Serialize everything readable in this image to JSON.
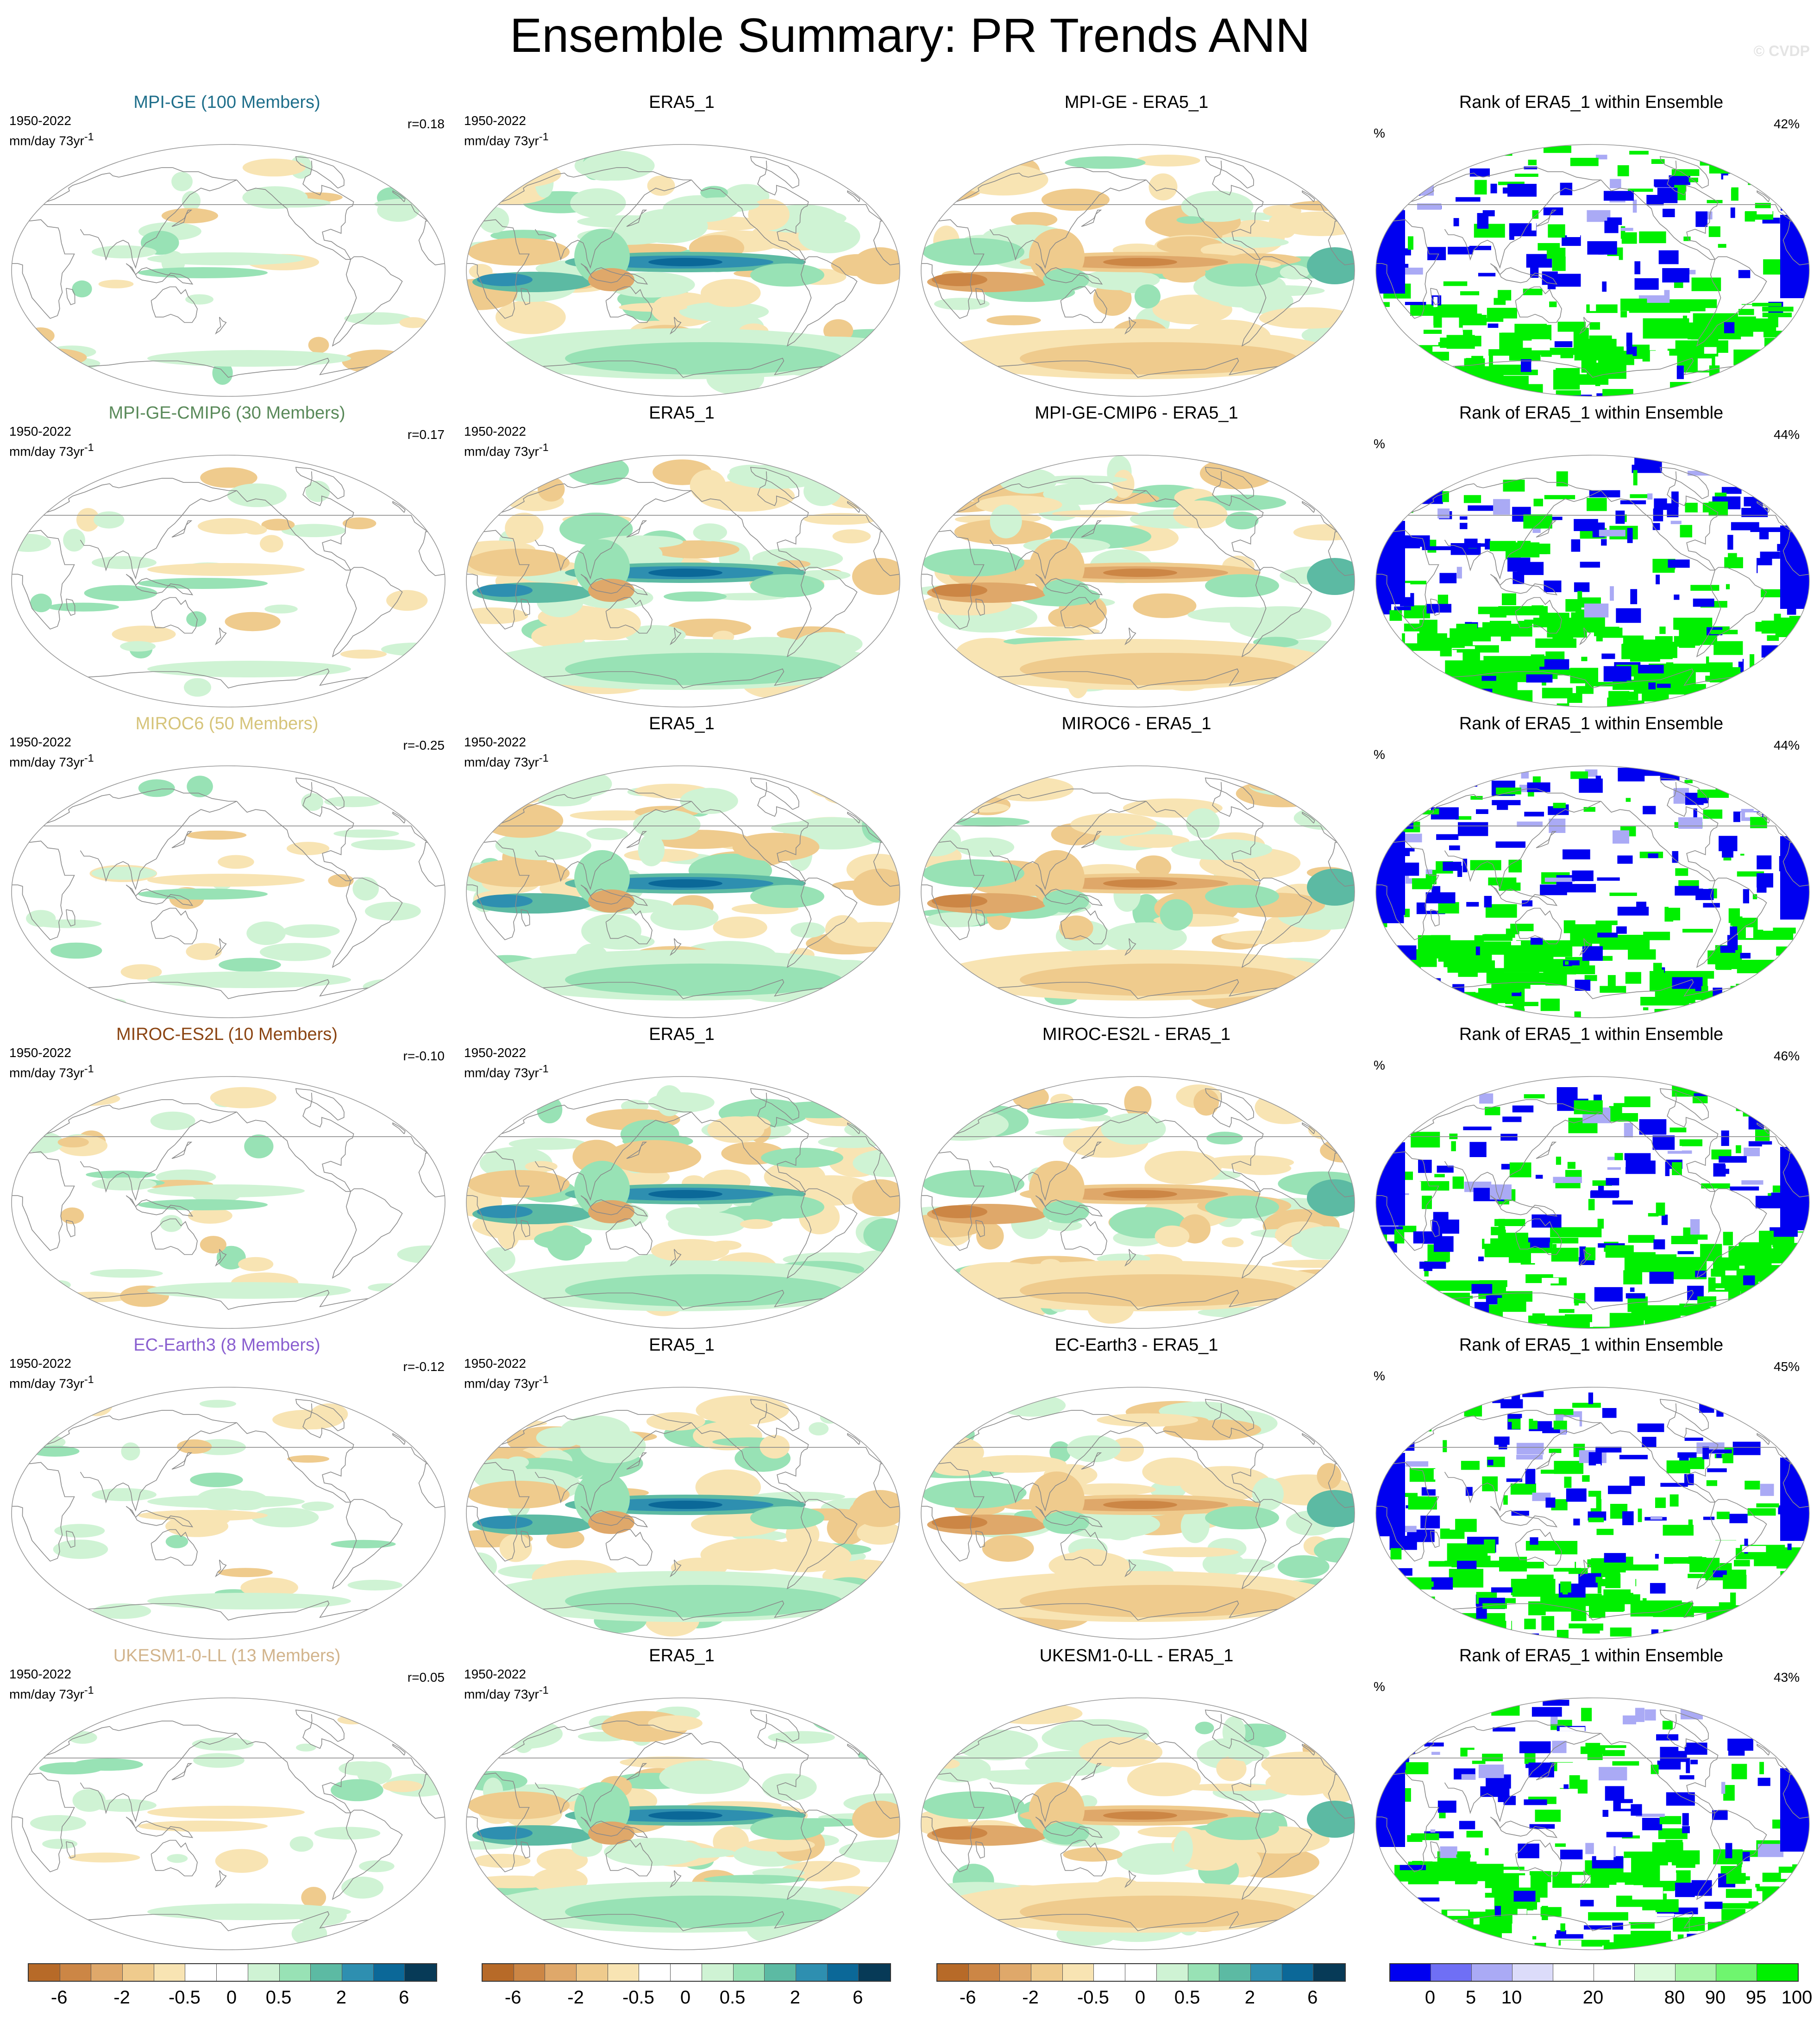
{
  "title": "Ensemble Summary: PR Trends ANN",
  "watermark": "© CVDP",
  "colors": {
    "trend_palette": [
      "#b76a28",
      "#cc8645",
      "#dfa86a",
      "#efcb8d",
      "#f8e4b3",
      "#ffffff",
      "#ffffff",
      "#cff3d4",
      "#98e2b5",
      "#5cbaa3",
      "#2e8fb0",
      "#0b6898",
      "#073a57"
    ],
    "rank_palette": [
      "#0000f0",
      "#6f6ff5",
      "#aaaaf5",
      "#dcdcfa",
      "#ffffff",
      "#ffffff",
      "#dcfadc",
      "#aaf5aa",
      "#6ff56f",
      "#00f000"
    ],
    "coastline": "#8a8a8a",
    "map_border": "#999999"
  },
  "panels": [
    {
      "model_title": "MPI-GE (100 Members)",
      "model_color": "#1f6f8b",
      "period": "1950-2022",
      "units": "mm/day 73yr",
      "units_sup": "-1",
      "r": "r=0.18",
      "obs_title": "ERA5_1",
      "diff_title": "MPI-GE - ERA5_1",
      "rank_title": "Rank of ERA5_1 within Ensemble",
      "rank_unit": "%",
      "rank_pct": "42%"
    },
    {
      "model_title": "MPI-GE-CMIP6 (30 Members)",
      "model_color": "#5a8a5a",
      "period": "1950-2022",
      "units": "mm/day 73yr",
      "units_sup": "-1",
      "r": "r=0.17",
      "obs_title": "ERA5_1",
      "diff_title": "MPI-GE-CMIP6 - ERA5_1",
      "rank_title": "Rank of ERA5_1 within Ensemble",
      "rank_unit": "%",
      "rank_pct": "44%"
    },
    {
      "model_title": "MIROC6 (50 Members)",
      "model_color": "#d6c47a",
      "period": "1950-2022",
      "units": "mm/day 73yr",
      "units_sup": "-1",
      "r": "r=-0.25",
      "obs_title": "ERA5_1",
      "diff_title": "MIROC6 - ERA5_1",
      "rank_title": "Rank of ERA5_1 within Ensemble",
      "rank_unit": "%",
      "rank_pct": "44%"
    },
    {
      "model_title": "MIROC-ES2L (10 Members)",
      "model_color": "#8b4513",
      "period": "1950-2022",
      "units": "mm/day 73yr",
      "units_sup": "-1",
      "r": "r=-0.10",
      "obs_title": "ERA5_1",
      "diff_title": "MIROC-ES2L - ERA5_1",
      "rank_title": "Rank of ERA5_1 within Ensemble",
      "rank_unit": "%",
      "rank_pct": "46%"
    },
    {
      "model_title": "EC-Earth3 (8 Members)",
      "model_color": "#8a5fd0",
      "period": "1950-2022",
      "units": "mm/day 73yr",
      "units_sup": "-1",
      "r": "r=-0.12",
      "obs_title": "ERA5_1",
      "diff_title": "EC-Earth3 - ERA5_1",
      "rank_title": "Rank of ERA5_1 within Ensemble",
      "rank_unit": "%",
      "rank_pct": "45%"
    },
    {
      "model_title": "UKESM1-0-LL (13 Members)",
      "model_color": "#d2b48c",
      "period": "1950-2022",
      "units": "mm/day 73yr",
      "units_sup": "-1",
      "r": "r=0.05",
      "obs_title": "ERA5_1",
      "diff_title": "UKESM1-0-LL - ERA5_1",
      "rank_title": "Rank of ERA5_1 within Ensemble",
      "rank_unit": "%",
      "rank_pct": "43%"
    }
  ],
  "colorbars": [
    {
      "labels": [
        "-6",
        "-2",
        "-0.5",
        "0",
        "0.5",
        "2",
        "6"
      ],
      "palette": "trend_palette"
    },
    {
      "labels": [
        "-6",
        "-2",
        "-0.5",
        "0",
        "0.5",
        "2",
        "6"
      ],
      "palette": "trend_palette"
    },
    {
      "labels": [
        "-6",
        "-2",
        "-0.5",
        "0",
        "0.5",
        "2",
        "6"
      ],
      "palette": "trend_palette"
    },
    {
      "labels": [
        "0",
        "5",
        "10",
        "20",
        "80",
        "90",
        "95",
        "100"
      ],
      "palette": "rank_palette"
    }
  ],
  "chart_data": {
    "type": "heatmap",
    "title": "Ensemble Summary: PR Trends ANN",
    "variable": "PR",
    "season": "ANN",
    "period": "1950-2022",
    "units": "mm/day 73yr-1",
    "projection": "Robinson, global, Pacific-centered",
    "layout": {
      "rows": 6,
      "columns": [
        "ensemble-mean trend",
        "ERA5_1 trend",
        "ensemble-mean minus ERA5_1",
        "rank of ERA5_1 within ensemble"
      ]
    },
    "models": [
      {
        "name": "MPI-GE",
        "members": 100,
        "pattern_correlation": 0.18,
        "rank_percent": 42
      },
      {
        "name": "MPI-GE-CMIP6",
        "members": 30,
        "pattern_correlation": 0.17,
        "rank_percent": 44
      },
      {
        "name": "MIROC6",
        "members": 50,
        "pattern_correlation": -0.25,
        "rank_percent": 44
      },
      {
        "name": "MIROC-ES2L",
        "members": 10,
        "pattern_correlation": -0.1,
        "rank_percent": 46
      },
      {
        "name": "EC-Earth3",
        "members": 8,
        "pattern_correlation": -0.12,
        "rank_percent": 45
      },
      {
        "name": "UKESM1-0-LL",
        "members": 13,
        "pattern_correlation": 0.05,
        "rank_percent": 43
      }
    ],
    "trend_colorbar_labels": [
      "-6",
      "-2",
      "-0.5",
      "0",
      "0.5",
      "2",
      "6"
    ],
    "rank_colorbar_labels": [
      "0",
      "5",
      "10",
      "20",
      "80",
      "90",
      "95",
      "100"
    ],
    "note_fields": "Spatial fields are color-filled maps; per-gridpoint values are not printed in the figure."
  }
}
